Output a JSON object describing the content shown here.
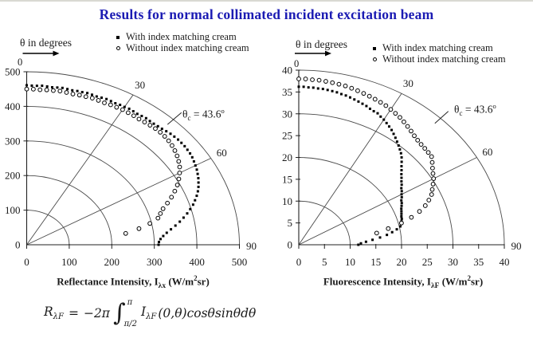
{
  "title": {
    "text": "Results for normal collimated incident excitation beam",
    "color": "#1b1bb3"
  },
  "colors": {
    "title": "#1b1bb3",
    "ink": "#1a1a1a",
    "grid": "#4a4a4a",
    "marker": "#000000"
  },
  "formula": {
    "lhs": "R",
    "lhs_sub": "λF",
    "eq": "=",
    "coef": "−2π",
    "integral": "∫",
    "upper": "π",
    "lower": "π/2",
    "integrand": "I",
    "integrand_sub": "λF",
    "args": "(0,θ)",
    "trig": "cosθsinθ",
    "diff": "dθ"
  },
  "chart_data": [
    {
      "type": "scatter",
      "polar": true,
      "name": "reflectance-polar-plot",
      "theta_note": "θ in degrees",
      "zero": "0",
      "x_axis_title": "Reflectance Intensity, I_λx (W/m^2·sr)",
      "x_title_parts": {
        "prefix": "Reflectance Intensity, I",
        "sub": "λx",
        "unit_pre": " (W/m",
        "unit_sup": "2",
        "unit_post": "sr)"
      },
      "r_max": 500,
      "tick_values": [
        0,
        100,
        200,
        300,
        400,
        500
      ],
      "arc_values": [
        100,
        200,
        300,
        400,
        500
      ],
      "angle_rays": [
        30,
        60
      ],
      "angle_labels": [
        {
          "angle": 30,
          "label": "30"
        },
        {
          "angle": 60,
          "label": "60"
        },
        {
          "angle": 90,
          "label": "90"
        }
      ],
      "critical_angle_deg": 43.6,
      "critical_label": {
        "sym": "θ",
        "sub": "c",
        "eq": " = 43.6",
        "sup": "o"
      },
      "series": [
        {
          "name": "With index matching cream",
          "marker": "square",
          "points_theta_r": [
            [
              0,
              461
            ],
            [
              1.5,
              460
            ],
            [
              3,
              460
            ],
            [
              4.5,
              461
            ],
            [
              6,
              460
            ],
            [
              7.5,
              459
            ],
            [
              9,
              460
            ],
            [
              10.5,
              461
            ],
            [
              12,
              460
            ],
            [
              13.5,
              459
            ],
            [
              15,
              460
            ],
            [
              16.5,
              460
            ],
            [
              18,
              461
            ],
            [
              19.5,
              460
            ],
            [
              21,
              459
            ],
            [
              22.5,
              460
            ],
            [
              24,
              461
            ],
            [
              25.5,
              460
            ],
            [
              27,
              459
            ],
            [
              28.5,
              460
            ],
            [
              30,
              460
            ],
            [
              31.5,
              461
            ],
            [
              33,
              460
            ],
            [
              34.5,
              459
            ],
            [
              36,
              460
            ],
            [
              37.5,
              461
            ],
            [
              39,
              460
            ],
            [
              40.5,
              460
            ],
            [
              42,
              461
            ],
            [
              43.5,
              462
            ],
            [
              45,
              464
            ],
            [
              46.5,
              466
            ],
            [
              48,
              467
            ],
            [
              49.5,
              468
            ],
            [
              51,
              468
            ],
            [
              52.5,
              468
            ],
            [
              54,
              467
            ],
            [
              55.5,
              466
            ],
            [
              57,
              464
            ],
            [
              58.5,
              461
            ],
            [
              60,
              458
            ],
            [
              61.5,
              455
            ],
            [
              63,
              451
            ],
            [
              64.5,
              447
            ],
            [
              66,
              442
            ],
            [
              67.5,
              437
            ],
            [
              69,
              431
            ],
            [
              70.5,
              424
            ],
            [
              72,
              416
            ],
            [
              73.5,
              408
            ],
            [
              75,
              398
            ],
            [
              76.5,
              388
            ],
            [
              78,
              377
            ],
            [
              79.5,
              366
            ],
            [
              81,
              354
            ],
            [
              82.5,
              342
            ],
            [
              84,
              331
            ],
            [
              85.5,
              322
            ],
            [
              87,
              315
            ],
            [
              88.5,
              311
            ],
            [
              90,
              310
            ]
          ]
        },
        {
          "name": "Without index matching cream",
          "marker": "circle",
          "points_theta_r": [
            [
              0,
              450
            ],
            [
              2,
              450
            ],
            [
              4,
              449
            ],
            [
              6,
              450
            ],
            [
              8,
              450
            ],
            [
              10,
              451
            ],
            [
              12,
              450
            ],
            [
              14,
              449
            ],
            [
              16,
              450
            ],
            [
              18,
              450
            ],
            [
              20,
              451
            ],
            [
              22,
              450
            ],
            [
              24,
              449
            ],
            [
              26,
              450
            ],
            [
              28,
              450
            ],
            [
              30,
              451
            ],
            [
              32,
              450
            ],
            [
              34,
              450
            ],
            [
              36,
              449
            ],
            [
              38,
              450
            ],
            [
              40,
              451
            ],
            [
              42,
              452
            ],
            [
              44,
              452
            ],
            [
              46,
              451
            ],
            [
              48,
              449
            ],
            [
              50,
              446
            ],
            [
              52,
              442
            ],
            [
              54,
              437
            ],
            [
              56,
              431
            ],
            [
              58,
              424
            ],
            [
              60,
              415
            ],
            [
              62,
              405
            ],
            [
              64,
              394
            ],
            [
              66,
              381
            ],
            [
              68,
              367
            ],
            [
              70,
              352
            ],
            [
              72,
              337
            ],
            [
              74,
              327
            ],
            [
              76,
              318
            ],
            [
              78,
              296
            ],
            [
              80,
              268
            ],
            [
              82,
              235
            ]
          ]
        }
      ]
    },
    {
      "type": "scatter",
      "polar": true,
      "name": "fluorescence-polar-plot",
      "theta_note": "θ in degrees",
      "zero": "0",
      "x_axis_title": "Fluorescence Intensity, I_λF (W/m^2·sr)",
      "x_title_parts": {
        "prefix": "Fluorescence Intensity, I",
        "sub": "λF",
        "unit_pre": " (W/m",
        "unit_sup": "2",
        "unit_post": "sr)"
      },
      "r_max": 40,
      "tick_values": [
        0,
        5,
        10,
        15,
        20,
        25,
        30,
        35,
        40
      ],
      "arc_values": [
        10,
        20,
        30,
        40
      ],
      "angle_rays": [
        30,
        60
      ],
      "angle_labels": [
        {
          "angle": 30,
          "label": "30"
        },
        {
          "angle": 60,
          "label": "60"
        },
        {
          "angle": 90,
          "label": "90"
        }
      ],
      "critical_angle_deg": 43.6,
      "critical_label": {
        "sym": "θ",
        "sub": "c",
        "eq": " = 43.6",
        "sup": "o"
      },
      "series": [
        {
          "name": "With index matching cream",
          "marker": "square",
          "points_theta_r": [
            [
              0,
              36.2
            ],
            [
              1.5,
              36.2
            ],
            [
              3,
              36.1
            ],
            [
              4.5,
              36.1
            ],
            [
              6,
              36
            ],
            [
              7.5,
              36
            ],
            [
              9,
              35.9
            ],
            [
              10.5,
              35.8
            ],
            [
              12,
              35.7
            ],
            [
              13.5,
              35.5
            ],
            [
              15,
              35.4
            ],
            [
              16.5,
              35.2
            ],
            [
              18,
              35
            ],
            [
              19.5,
              34.8
            ],
            [
              21,
              34.6
            ],
            [
              22.5,
              34.4
            ],
            [
              24,
              34.1
            ],
            [
              25.5,
              33.9
            ],
            [
              27,
              33.8
            ],
            [
              28.5,
              33.4
            ],
            [
              30,
              33.1
            ],
            [
              31.5,
              32.7
            ],
            [
              33,
              32.3
            ],
            [
              34.5,
              31.9
            ],
            [
              36,
              31.4
            ],
            [
              37.5,
              30.9
            ],
            [
              39,
              30.4
            ],
            [
              40.5,
              29.9
            ],
            [
              42,
              29.4
            ],
            [
              43.5,
              28.9
            ],
            [
              45,
              28.3
            ],
            [
              46.5,
              27.6
            ],
            [
              48,
              26.9
            ],
            [
              49.5,
              26.3
            ],
            [
              51,
              25.7
            ],
            [
              52.5,
              25.2
            ],
            [
              54,
              24.7
            ],
            [
              55.5,
              24.3
            ],
            [
              57,
              23.8
            ],
            [
              58.5,
              23.5
            ],
            [
              60,
              23.1
            ],
            [
              61.5,
              22.8
            ],
            [
              63,
              22.4
            ],
            [
              64.5,
              22.2
            ],
            [
              66,
              21.9
            ],
            [
              67.5,
              21.6
            ],
            [
              69,
              21.4
            ],
            [
              70.5,
              21.2
            ],
            [
              72,
              21
            ],
            [
              73.5,
              20.9
            ],
            [
              75,
              20.7
            ],
            [
              76.5,
              20.6
            ],
            [
              78,
              20.2
            ],
            [
              79.5,
              19.4
            ],
            [
              81,
              18.4
            ],
            [
              82.5,
              17.3
            ],
            [
              84,
              15.9
            ],
            [
              85.5,
              14.4
            ],
            [
              87,
              13.1
            ],
            [
              88.5,
              12.1
            ],
            [
              90,
              11.6
            ]
          ]
        },
        {
          "name": "Without index matching cream",
          "marker": "circle",
          "points_theta_r": [
            [
              0,
              38
            ],
            [
              2,
              38
            ],
            [
              4,
              37.9
            ],
            [
              6,
              37.9
            ],
            [
              8,
              37.8
            ],
            [
              10,
              37.7
            ],
            [
              12,
              37.6
            ],
            [
              14,
              37.5
            ],
            [
              16,
              37.3
            ],
            [
              18,
              37.1
            ],
            [
              20,
              36.9
            ],
            [
              22,
              36.7
            ],
            [
              24,
              36.5
            ],
            [
              26,
              36.3
            ],
            [
              28,
              36.1
            ],
            [
              30,
              35.8
            ],
            [
              32,
              35.5
            ],
            [
              34,
              35.2
            ],
            [
              36,
              34.8
            ],
            [
              38,
              34.4
            ],
            [
              40,
              34
            ],
            [
              42,
              33.6
            ],
            [
              44,
              33.3
            ],
            [
              46,
              33.1
            ],
            [
              48,
              33
            ],
            [
              50,
              32.9
            ],
            [
              52,
              32.8
            ],
            [
              54,
              32.1
            ],
            [
              56,
              31.4
            ],
            [
              58,
              30.8
            ],
            [
              60,
              30.3
            ],
            [
              62,
              29.6
            ],
            [
              64,
              28.9
            ],
            [
              66,
              28.3
            ],
            [
              68,
              27.3
            ],
            [
              70,
              26.2
            ],
            [
              72,
              24.7
            ],
            [
              74,
              22.8
            ],
            [
              76,
              20.6
            ],
            [
              78,
              17.8
            ],
            [
              80,
              15.4
            ]
          ]
        }
      ]
    }
  ]
}
